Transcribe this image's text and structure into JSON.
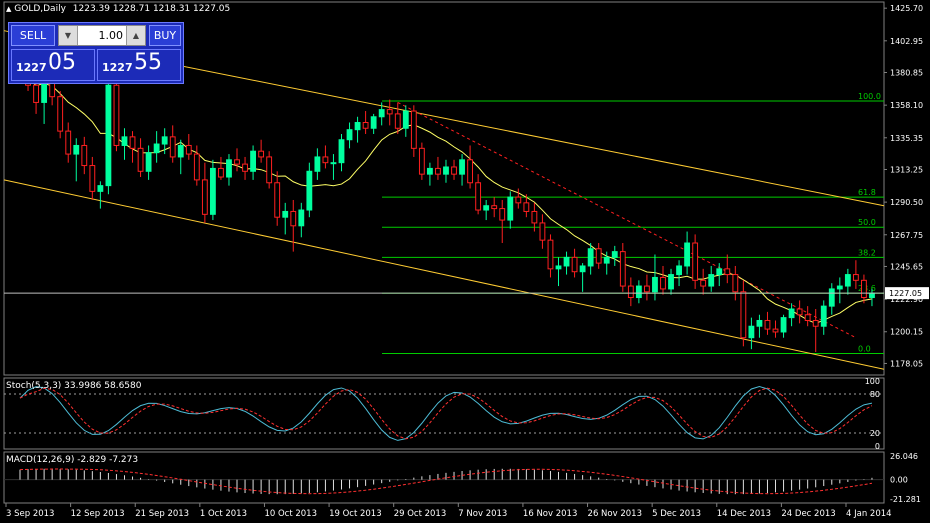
{
  "header": {
    "symbol_icon": "triangle-up-icon",
    "title": "GOLD,Daily",
    "ohlc": "1223.39 1228.71 1218.31 1227.05"
  },
  "trade_panel": {
    "sell_label": "SELL",
    "buy_label": "BUY",
    "lots": "1.00",
    "bid_prefix": "1227",
    "bid_big": "05",
    "ask_prefix": "1227",
    "ask_big": "55"
  },
  "stoch": {
    "title": "Stoch(5,3,3) 33.9986 58.6580"
  },
  "macd": {
    "title": "MACD(12,26,9) -2.829 -7.273"
  },
  "colors": {
    "bull": "#00ff9f",
    "bear": "#ff2020",
    "ma": "#ffff66",
    "channel": "#ffcc33",
    "fib": "#00cc00",
    "stoch_main": "#4dbbd5",
    "stoch_signal": "#ff3030",
    "current_price": "#c0c0c0"
  },
  "chart_data": [
    {
      "type": "candlestick",
      "y_ticks": [
        "1425.70",
        "1402.95",
        "1380.85",
        "1358.10",
        "1335.35",
        "1313.25",
        "1290.50",
        "1267.75",
        "1245.65",
        "1222.90",
        "1200.15",
        "1178.05"
      ],
      "ylim": [
        1170,
        1430
      ],
      "current_price": "1227.05",
      "x_labels": [
        "3 Sep 2013",
        "12 Sep 2013",
        "21 Sep 2013",
        "1 Oct 2013",
        "10 Oct 2013",
        "19 Oct 2013",
        "29 Oct 2013",
        "7 Nov 2013",
        "16 Nov 2013",
        "26 Nov 2013",
        "5 Dec 2013",
        "14 Dec 2013",
        "24 Dec 2013",
        "4 Jan 2014"
      ],
      "fib_levels": [
        {
          "label": "100.0",
          "price": 1361
        },
        {
          "label": "61.8",
          "price": 1294
        },
        {
          "label": "50.0",
          "price": 1273
        },
        {
          "label": "38.2",
          "price": 1252
        },
        {
          "label": "23.6",
          "price": 1227
        },
        {
          "label": "0.0",
          "price": 1185
        }
      ],
      "candles": [
        [
          1392,
          1398,
          1378,
          1383
        ],
        [
          1385,
          1392,
          1368,
          1372
        ],
        [
          1372,
          1378,
          1352,
          1360
        ],
        [
          1360,
          1385,
          1345,
          1378
        ],
        [
          1378,
          1382,
          1358,
          1364
        ],
        [
          1364,
          1368,
          1335,
          1340
        ],
        [
          1340,
          1346,
          1318,
          1324
        ],
        [
          1324,
          1335,
          1305,
          1330
        ],
        [
          1330,
          1336,
          1310,
          1316
        ],
        [
          1316,
          1322,
          1292,
          1298
        ],
        [
          1298,
          1305,
          1286,
          1302
        ],
        [
          1302,
          1385,
          1296,
          1372
        ],
        [
          1372,
          1376,
          1326,
          1330
        ],
        [
          1330,
          1342,
          1320,
          1336
        ],
        [
          1336,
          1340,
          1318,
          1328
        ],
        [
          1328,
          1335,
          1308,
          1312
        ],
        [
          1312,
          1330,
          1306,
          1325
        ],
        [
          1325,
          1340,
          1318,
          1331
        ],
        [
          1331,
          1342,
          1324,
          1336
        ],
        [
          1336,
          1344,
          1318,
          1322
        ],
        [
          1322,
          1334,
          1310,
          1330
        ],
        [
          1330,
          1338,
          1320,
          1324
        ],
        [
          1324,
          1330,
          1302,
          1306
        ],
        [
          1306,
          1318,
          1276,
          1282
        ],
        [
          1282,
          1320,
          1278,
          1314
        ],
        [
          1314,
          1322,
          1306,
          1308
        ],
        [
          1308,
          1324,
          1302,
          1320
        ],
        [
          1320,
          1328,
          1312,
          1317
        ],
        [
          1317,
          1322,
          1306,
          1312
        ],
        [
          1312,
          1330,
          1306,
          1326
        ],
        [
          1326,
          1334,
          1318,
          1322
        ],
        [
          1322,
          1326,
          1300,
          1304
        ],
        [
          1304,
          1312,
          1274,
          1280
        ],
        [
          1280,
          1290,
          1268,
          1284
        ],
        [
          1284,
          1292,
          1256,
          1274
        ],
        [
          1274,
          1290,
          1266,
          1285
        ],
        [
          1285,
          1318,
          1280,
          1312
        ],
        [
          1312,
          1328,
          1306,
          1322
        ],
        [
          1322,
          1330,
          1314,
          1318
        ],
        [
          1318,
          1324,
          1306,
          1318
        ],
        [
          1318,
          1338,
          1312,
          1334
        ],
        [
          1334,
          1346,
          1328,
          1341
        ],
        [
          1341,
          1350,
          1332,
          1346
        ],
        [
          1346,
          1354,
          1338,
          1342
        ],
        [
          1342,
          1352,
          1338,
          1350
        ],
        [
          1350,
          1360,
          1344,
          1355
        ],
        [
          1355,
          1362,
          1344,
          1352
        ],
        [
          1352,
          1360,
          1338,
          1342
        ],
        [
          1342,
          1358,
          1336,
          1354
        ],
        [
          1354,
          1358,
          1322,
          1328
        ],
        [
          1328,
          1332,
          1306,
          1310
        ],
        [
          1310,
          1318,
          1302,
          1314
        ],
        [
          1314,
          1322,
          1306,
          1310
        ],
        [
          1310,
          1320,
          1304,
          1315
        ],
        [
          1315,
          1320,
          1306,
          1310
        ],
        [
          1310,
          1324,
          1302,
          1320
        ],
        [
          1320,
          1330,
          1300,
          1304
        ],
        [
          1304,
          1310,
          1282,
          1285
        ],
        [
          1285,
          1292,
          1278,
          1288
        ],
        [
          1288,
          1294,
          1280,
          1286
        ],
        [
          1286,
          1292,
          1262,
          1278
        ],
        [
          1278,
          1298,
          1272,
          1294
        ],
        [
          1294,
          1300,
          1286,
          1290
        ],
        [
          1290,
          1296,
          1280,
          1284
        ],
        [
          1284,
          1290,
          1270,
          1276
        ],
        [
          1276,
          1282,
          1258,
          1264
        ],
        [
          1264,
          1268,
          1238,
          1244
        ],
        [
          1244,
          1252,
          1232,
          1246
        ],
        [
          1246,
          1256,
          1240,
          1252
        ],
        [
          1252,
          1258,
          1238,
          1242
        ],
        [
          1242,
          1248,
          1228,
          1246
        ],
        [
          1246,
          1262,
          1240,
          1258
        ],
        [
          1258,
          1262,
          1244,
          1248
        ],
        [
          1248,
          1256,
          1240,
          1252
        ],
        [
          1252,
          1260,
          1246,
          1256
        ],
        [
          1256,
          1262,
          1228,
          1232
        ],
        [
          1232,
          1238,
          1218,
          1224
        ],
        [
          1224,
          1236,
          1220,
          1232
        ],
        [
          1232,
          1240,
          1222,
          1228
        ],
        [
          1228,
          1254,
          1222,
          1238
        ],
        [
          1238,
          1246,
          1226,
          1230
        ],
        [
          1230,
          1244,
          1226,
          1240
        ],
        [
          1240,
          1250,
          1232,
          1246
        ],
        [
          1246,
          1270,
          1240,
          1262
        ],
        [
          1262,
          1268,
          1230,
          1236
        ],
        [
          1236,
          1244,
          1226,
          1232
        ],
        [
          1232,
          1246,
          1228,
          1240
        ],
        [
          1240,
          1248,
          1232,
          1244
        ],
        [
          1244,
          1254,
          1234,
          1240
        ],
        [
          1240,
          1246,
          1222,
          1228
        ],
        [
          1228,
          1236,
          1190,
          1196
        ],
        [
          1196,
          1210,
          1188,
          1204
        ],
        [
          1204,
          1212,
          1196,
          1208
        ],
        [
          1208,
          1214,
          1198,
          1202
        ],
        [
          1202,
          1208,
          1196,
          1200
        ],
        [
          1200,
          1212,
          1196,
          1210
        ],
        [
          1210,
          1220,
          1204,
          1216
        ],
        [
          1216,
          1222,
          1206,
          1212
        ],
        [
          1212,
          1218,
          1204,
          1208
        ],
        [
          1208,
          1216,
          1186,
          1204
        ],
        [
          1204,
          1222,
          1198,
          1218
        ],
        [
          1218,
          1234,
          1212,
          1230
        ],
        [
          1230,
          1238,
          1220,
          1232
        ],
        [
          1232,
          1244,
          1226,
          1240
        ],
        [
          1240,
          1250,
          1230,
          1236
        ],
        [
          1236,
          1240,
          1220,
          1224
        ],
        [
          1224,
          1230,
          1218,
          1227
        ]
      ]
    },
    {
      "type": "line",
      "name": "Stoch(5,3,3)",
      "ylim": [
        0,
        100
      ],
      "y_ticks": [
        "100",
        "80",
        "20",
        "0"
      ]
    },
    {
      "type": "bar",
      "name": "MACD(12,26,9)",
      "y_ticks": [
        "26.046",
        "0.00",
        "-21.281"
      ]
    }
  ]
}
